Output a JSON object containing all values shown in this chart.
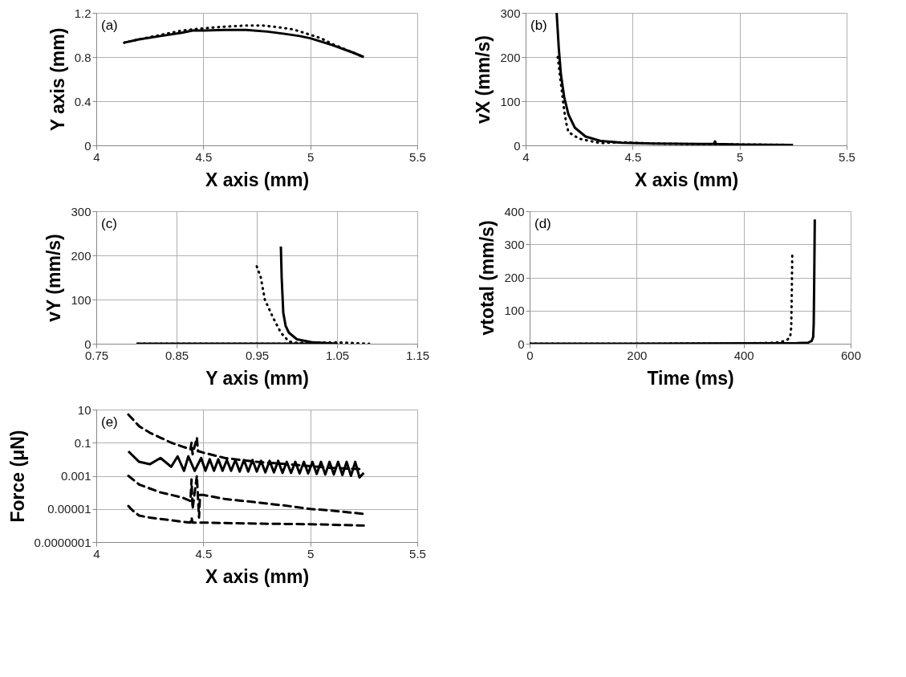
{
  "chart_data": [
    {
      "type": "line",
      "annotations": [
        "(a)"
      ],
      "xlabel": "X axis (mm)",
      "ylabel": "Y axis (mm)",
      "xlim": [
        4,
        5.5
      ],
      "xticks": [
        4,
        4.5,
        5,
        5.5
      ],
      "ylim": [
        0,
        1.2
      ],
      "yticks": [
        0,
        0.4,
        0.8,
        1.2
      ],
      "grid": true,
      "marker": "none",
      "series": [
        {
          "color": "#000000",
          "line_style": "solid",
          "x": [
            4.13,
            4.2,
            4.3,
            4.4,
            4.45,
            4.5,
            4.6,
            4.7,
            4.8,
            4.88,
            4.95,
            5.0,
            5.1,
            5.2,
            5.25
          ],
          "values": [
            0.93,
            0.96,
            0.99,
            1.02,
            1.04,
            1.04,
            1.045,
            1.045,
            1.03,
            1.01,
            0.99,
            0.97,
            0.91,
            0.84,
            0.8
          ]
        },
        {
          "color": "#000000",
          "line_style": "dotted",
          "x": [
            4.13,
            4.2,
            4.3,
            4.4,
            4.5,
            4.6,
            4.7,
            4.78,
            4.85,
            4.92,
            4.97,
            5.05,
            5.1,
            5.2,
            5.25
          ],
          "values": [
            0.93,
            0.96,
            1.0,
            1.04,
            1.06,
            1.075,
            1.085,
            1.085,
            1.07,
            1.05,
            1.02,
            0.97,
            0.92,
            0.84,
            0.8
          ]
        }
      ]
    },
    {
      "type": "line",
      "annotations": [
        "(b)"
      ],
      "xlabel": "X axis (mm)",
      "ylabel": "vX (mm/s)",
      "xlim": [
        4,
        5.5
      ],
      "xticks": [
        4,
        4.5,
        5,
        5.5
      ],
      "ylim": [
        0,
        300
      ],
      "yticks": [
        0,
        100,
        200,
        300
      ],
      "grid": true,
      "marker": "none",
      "series": [
        {
          "color": "#000000",
          "line_style": "solid",
          "x": [
            4.145,
            4.155,
            4.165,
            4.18,
            4.2,
            4.23,
            4.28,
            4.35,
            4.45,
            4.6,
            4.8,
            4.88,
            4.885,
            4.89,
            5.0,
            5.25
          ],
          "values": [
            300,
            220,
            160,
            110,
            70,
            40,
            20,
            10,
            6,
            4,
            3,
            3,
            9,
            3,
            2,
            1
          ]
        },
        {
          "color": "#000000",
          "line_style": "dotted",
          "x": [
            4.15,
            4.16,
            4.17,
            4.18,
            4.19,
            4.2,
            4.25,
            4.3,
            4.35,
            4.45,
            4.6,
            5.0,
            5.25
          ],
          "values": [
            200,
            160,
            120,
            80,
            50,
            30,
            15,
            10,
            5,
            7,
            4,
            2,
            1
          ]
        }
      ]
    },
    {
      "type": "line",
      "annotations": [
        "(c)"
      ],
      "xlabel": "Y axis (mm)",
      "ylabel": "vY (mm/s)",
      "xlim": [
        0.75,
        1.15
      ],
      "xticks": [
        0.75,
        0.85,
        0.95,
        1.05,
        1.15
      ],
      "ylim": [
        0,
        300
      ],
      "yticks": [
        0,
        100,
        200,
        300
      ],
      "grid": true,
      "marker": "none",
      "series": [
        {
          "color": "#000000",
          "line_style": "solid",
          "x": [
            0.98,
            0.981,
            0.983,
            0.986,
            0.99,
            1.0,
            1.02,
            1.05,
            1.0,
            0.9,
            0.8
          ],
          "values": [
            220,
            150,
            70,
            40,
            25,
            10,
            3,
            0,
            0,
            0,
            0
          ]
        },
        {
          "color": "#000000",
          "line_style": "dotted",
          "x": [
            0.95,
            0.955,
            0.96,
            0.97,
            0.98,
            0.99,
            1.0,
            1.05,
            1.09,
            1.05,
            0.95,
            0.8
          ],
          "values": [
            175,
            150,
            100,
            60,
            25,
            5,
            2,
            3,
            0,
            0,
            0,
            0
          ]
        }
      ]
    },
    {
      "type": "line",
      "annotations": [
        "(d)"
      ],
      "xlabel": "Time (ms)",
      "ylabel": "vtotal (mm/s)",
      "xlim": [
        0,
        600
      ],
      "xticks": [
        0,
        200,
        400,
        600
      ],
      "ylim": [
        0,
        400
      ],
      "yticks": [
        0,
        100,
        200,
        300,
        400
      ],
      "grid": true,
      "marker": "none",
      "series": [
        {
          "color": "#000000",
          "line_style": "solid",
          "x": [
            0,
            200,
            400,
            500,
            520,
            527,
            530,
            531,
            532,
            533
          ],
          "values": [
            0,
            0,
            1,
            2,
            3,
            8,
            20,
            60,
            200,
            375
          ]
        },
        {
          "color": "#000000",
          "line_style": "dotted",
          "x": [
            0,
            200,
            400,
            460,
            470,
            480,
            487,
            489,
            490,
            491
          ],
          "values": [
            0,
            0,
            1,
            3,
            6,
            10,
            20,
            50,
            150,
            280
          ]
        }
      ]
    },
    {
      "type": "line",
      "annotations": [
        "(e)"
      ],
      "xlabel": "X axis (mm)",
      "ylabel": "Force (μN)",
      "xlim": [
        4,
        5.5
      ],
      "xticks": [
        4,
        4.5,
        5,
        5.5
      ],
      "ylim": [
        1e-07,
        10
      ],
      "yticks": [
        10,
        0.1,
        0.001,
        {
          "value": 1e-05,
          "label": "0.00001"
        },
        {
          "value": 1e-07,
          "label": "0.0000001"
        }
      ],
      "log": "y",
      "grid": true,
      "marker": "none",
      "series": [
        {
          "color": "#000000",
          "line_style": "dashed",
          "x": [
            4.15,
            4.2,
            4.25,
            4.3,
            4.35,
            4.4,
            4.44,
            4.445,
            4.45,
            4.47,
            4.475,
            4.48,
            4.5,
            4.6,
            4.75,
            4.9,
            5.0,
            5.1,
            5.25
          ],
          "values": [
            5,
            1,
            0.4,
            0.2,
            0.1,
            0.06,
            0.04,
            0.1,
            0.02,
            0.2,
            0.03,
            0.03,
            0.025,
            0.012,
            0.007,
            0.005,
            0.0038,
            0.003,
            0.0025
          ]
        },
        {
          "color": "#000000",
          "line_style": "solid",
          "x": [
            4.15,
            4.2,
            4.25,
            4.3,
            4.35,
            4.38,
            4.41,
            4.43,
            4.46,
            4.49,
            4.51,
            4.53,
            4.55,
            4.57,
            4.59,
            4.61,
            4.63,
            4.65,
            4.67,
            4.69,
            4.71,
            4.73,
            4.75,
            4.77,
            4.79,
            4.81,
            4.83,
            4.85,
            4.87,
            4.89,
            4.91,
            4.93,
            4.95,
            4.97,
            4.99,
            5.01,
            5.03,
            5.05,
            5.07,
            5.09,
            5.11,
            5.13,
            5.15,
            5.17,
            5.19,
            5.21,
            5.23,
            5.25
          ],
          "values": [
            0.03,
            0.007,
            0.005,
            0.012,
            0.0035,
            0.015,
            0.002,
            0.015,
            0.002,
            0.012,
            0.002,
            0.01,
            0.002,
            0.01,
            0.002,
            0.009,
            0.002,
            0.009,
            0.0018,
            0.009,
            0.0018,
            0.009,
            0.0018,
            0.008,
            0.0016,
            0.008,
            0.0016,
            0.008,
            0.0015,
            0.007,
            0.0015,
            0.007,
            0.0014,
            0.007,
            0.0014,
            0.007,
            0.0013,
            0.007,
            0.0012,
            0.007,
            0.0012,
            0.007,
            0.0011,
            0.007,
            0.001,
            0.007,
            0.0008,
            0.0015
          ]
        },
        {
          "color": "#000000",
          "line_style": "dashed",
          "x": [
            4.15,
            4.2,
            4.3,
            4.4,
            4.44,
            4.445,
            4.45,
            4.47,
            4.48,
            4.485,
            4.5,
            4.6,
            4.75,
            4.9,
            5.0,
            5.1,
            5.25
          ],
          "values": [
            0.001,
            0.0003,
            0.0001,
            5e-05,
            3e-05,
            0.0006,
            1e-05,
            0.001,
            3e-06,
            7e-05,
            7e-05,
            4e-05,
            2.5e-05,
            1.5e-05,
            1e-05,
            8e-06,
            5e-06
          ]
        },
        {
          "color": "#000000",
          "line_style": "dashed",
          "x": [
            4.15,
            4.17,
            4.2,
            4.25,
            4.3,
            4.4,
            4.44,
            4.445,
            4.45,
            4.5,
            4.75,
            5.0,
            5.25
          ],
          "values": [
            1.5e-05,
            8e-06,
            4e-06,
            3e-06,
            2.5e-06,
            1.7e-06,
            1.5e-06,
            3e-06,
            1.5e-06,
            1.5e-06,
            1.3e-06,
            1.2e-06,
            1e-06
          ]
        }
      ]
    }
  ]
}
